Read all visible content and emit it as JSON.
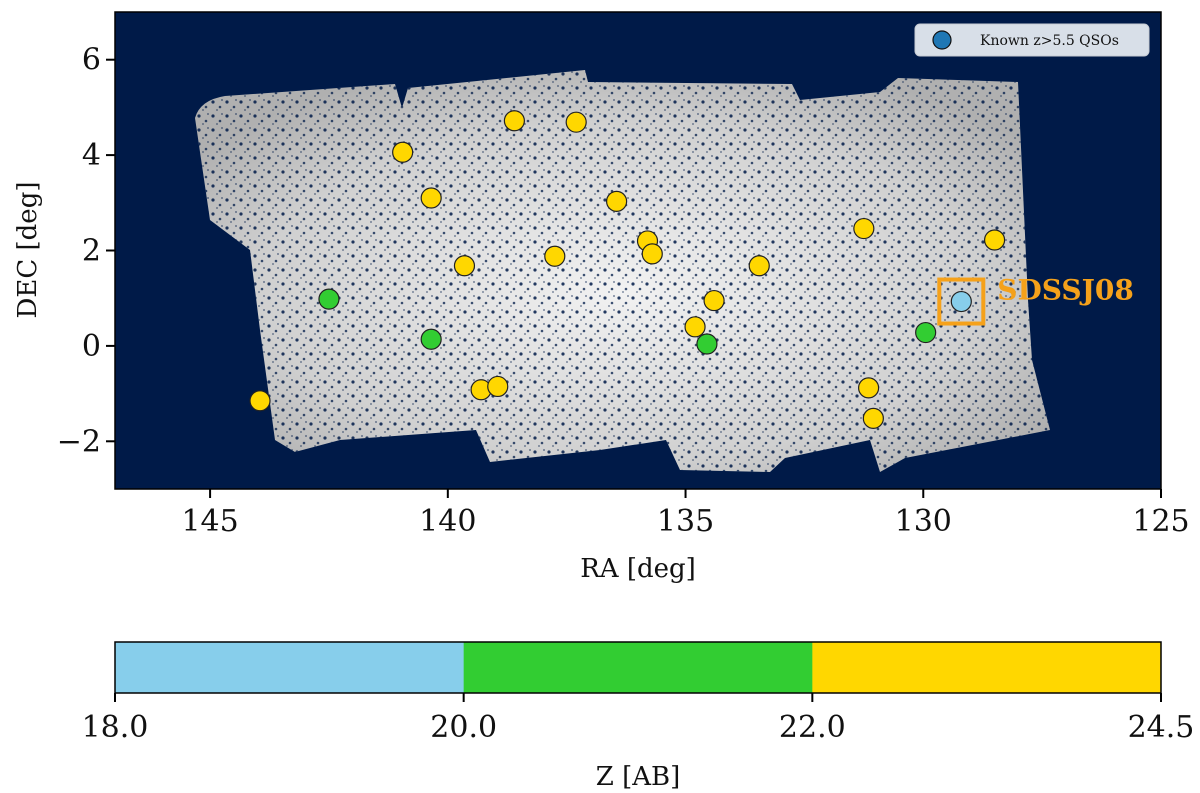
{
  "chart_data": {
    "type": "scatter",
    "xlabel": "RA [deg]",
    "ylabel": "DEC [deg]",
    "xlim": [
      147,
      125
    ],
    "ylim": [
      -3,
      7
    ],
    "x_ticks": [
      145,
      140,
      135,
      130,
      125
    ],
    "y_ticks": [
      6,
      4,
      2,
      0,
      -2
    ],
    "x_tick_labels": [
      "145",
      "140",
      "135",
      "130",
      "125"
    ],
    "y_tick_labels": [
      "6",
      "4",
      "2",
      "0",
      "−2"
    ],
    "background_color": "#001a48",
    "field_color": "#d4d4d4",
    "legend": {
      "label": "Known z>5.5 QSOs",
      "marker_color": "#1f77b4",
      "placement": "upper-right"
    },
    "annotation": {
      "text": "SDSSJ08",
      "ra": 129.2,
      "dec": 0.93,
      "color": "#f5a11a"
    },
    "points": [
      {
        "ra": 129.2,
        "dec": 0.93,
        "z_ab": 19.0
      },
      {
        "ra": 142.5,
        "dec": 0.98,
        "z_ab": 21.0
      },
      {
        "ra": 140.35,
        "dec": 0.14,
        "z_ab": 21.0
      },
      {
        "ra": 134.55,
        "dec": 0.04,
        "z_ab": 21.0
      },
      {
        "ra": 129.95,
        "dec": 0.28,
        "z_ab": 21.0
      },
      {
        "ra": 143.95,
        "dec": -1.15,
        "z_ab": 23.0
      },
      {
        "ra": 140.95,
        "dec": 4.06,
        "z_ab": 23.0
      },
      {
        "ra": 140.35,
        "dec": 3.1,
        "z_ab": 23.0
      },
      {
        "ra": 139.65,
        "dec": 1.68,
        "z_ab": 23.0
      },
      {
        "ra": 139.3,
        "dec": -0.92,
        "z_ab": 23.0
      },
      {
        "ra": 138.95,
        "dec": -0.85,
        "z_ab": 23.0
      },
      {
        "ra": 138.6,
        "dec": 4.72,
        "z_ab": 23.0
      },
      {
        "ra": 137.75,
        "dec": 1.88,
        "z_ab": 23.0
      },
      {
        "ra": 137.3,
        "dec": 4.69,
        "z_ab": 23.0
      },
      {
        "ra": 136.45,
        "dec": 3.03,
        "z_ab": 23.0
      },
      {
        "ra": 135.8,
        "dec": 2.2,
        "z_ab": 23.0
      },
      {
        "ra": 135.7,
        "dec": 1.93,
        "z_ab": 23.0
      },
      {
        "ra": 134.4,
        "dec": 0.95,
        "z_ab": 23.0
      },
      {
        "ra": 134.8,
        "dec": 0.4,
        "z_ab": 23.0
      },
      {
        "ra": 133.45,
        "dec": 1.68,
        "z_ab": 23.0
      },
      {
        "ra": 131.25,
        "dec": 2.46,
        "z_ab": 23.0
      },
      {
        "ra": 128.5,
        "dec": 2.22,
        "z_ab": 23.0
      },
      {
        "ra": 131.15,
        "dec": -0.88,
        "z_ab": 23.0
      },
      {
        "ra": 131.05,
        "dec": -1.52,
        "z_ab": 23.0
      }
    ],
    "colorbar": {
      "label": "Z [AB]",
      "bounds": [
        18.0,
        20.0,
        22.0,
        24.5
      ],
      "tick_labels": [
        "18.0",
        "20.0",
        "22.0",
        "24.5"
      ],
      "colors": [
        "#87ceeb",
        "#32cd32",
        "#ffd700"
      ]
    }
  }
}
